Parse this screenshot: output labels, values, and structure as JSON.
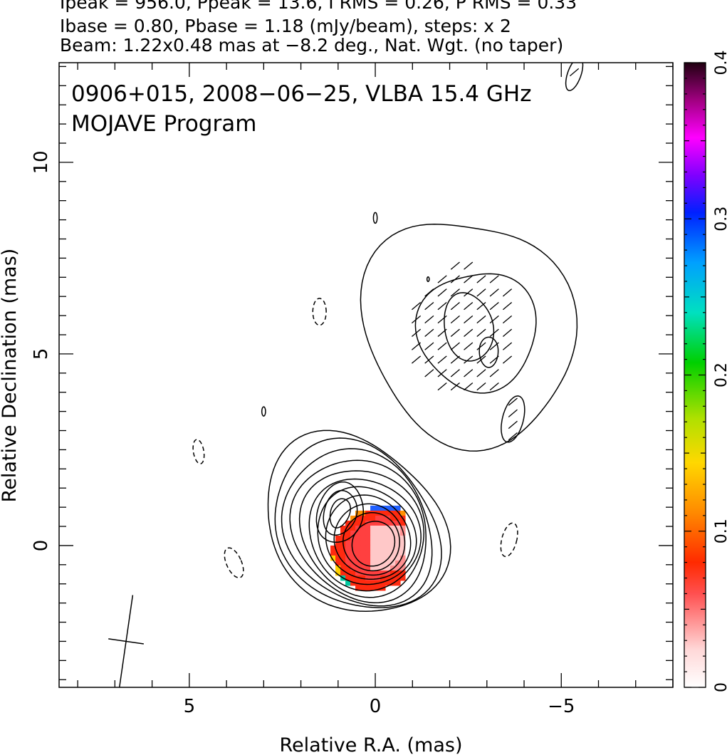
{
  "header": {
    "line1": "Ipeak = 956.0, Ppeak = 13.6, I RMS = 0.26, P RMS = 0.33",
    "line2": "Ibase = 0.80, Pbase = 1.18 (mJy/beam), steps: x 2",
    "line3": "Beam: 1.22x0.48 mas at −8.2 deg., Nat. Wgt. (no taper)"
  },
  "chart_data": {
    "type": "heatmap",
    "title": "0906+015, 2008−06−25, VLBA 15.4 GHz",
    "subtitle": "MOJAVE Program",
    "xlabel": "Relative R.A. (mas)",
    "ylabel": "Relative Declination (mas)",
    "xlim": [
      8.5,
      -8.0
    ],
    "ylim": [
      -3.7,
      12.6
    ],
    "x_ticks": [
      {
        "value": 5,
        "label": "5"
      },
      {
        "value": 0,
        "label": "0"
      },
      {
        "value": -5,
        "label": "−5"
      }
    ],
    "y_ticks": [
      {
        "value": 0,
        "label": "0"
      },
      {
        "value": 5,
        "label": "5"
      },
      {
        "value": 10,
        "label": "10"
      }
    ],
    "colorbar": {
      "range": [
        0,
        0.4
      ],
      "ticks": [
        {
          "value": 0,
          "label": "0"
        },
        {
          "value": 0.1,
          "label": "0.1"
        },
        {
          "value": 0.2,
          "label": "0.2"
        },
        {
          "value": 0.3,
          "label": "0.3"
        },
        {
          "value": 0.4,
          "label": "0.4"
        }
      ]
    },
    "core": {
      "ra": 0.0,
      "dec": 0.0,
      "contour_levels": 11
    },
    "jet_knot": {
      "ra": -2.5,
      "dec": 5.6,
      "contour_levels": 4
    },
    "beam": {
      "ra": 6.7,
      "dec": -2.5,
      "major_mas": 1.22,
      "minor_mas": 0.48,
      "pa_deg": -8.2
    }
  }
}
